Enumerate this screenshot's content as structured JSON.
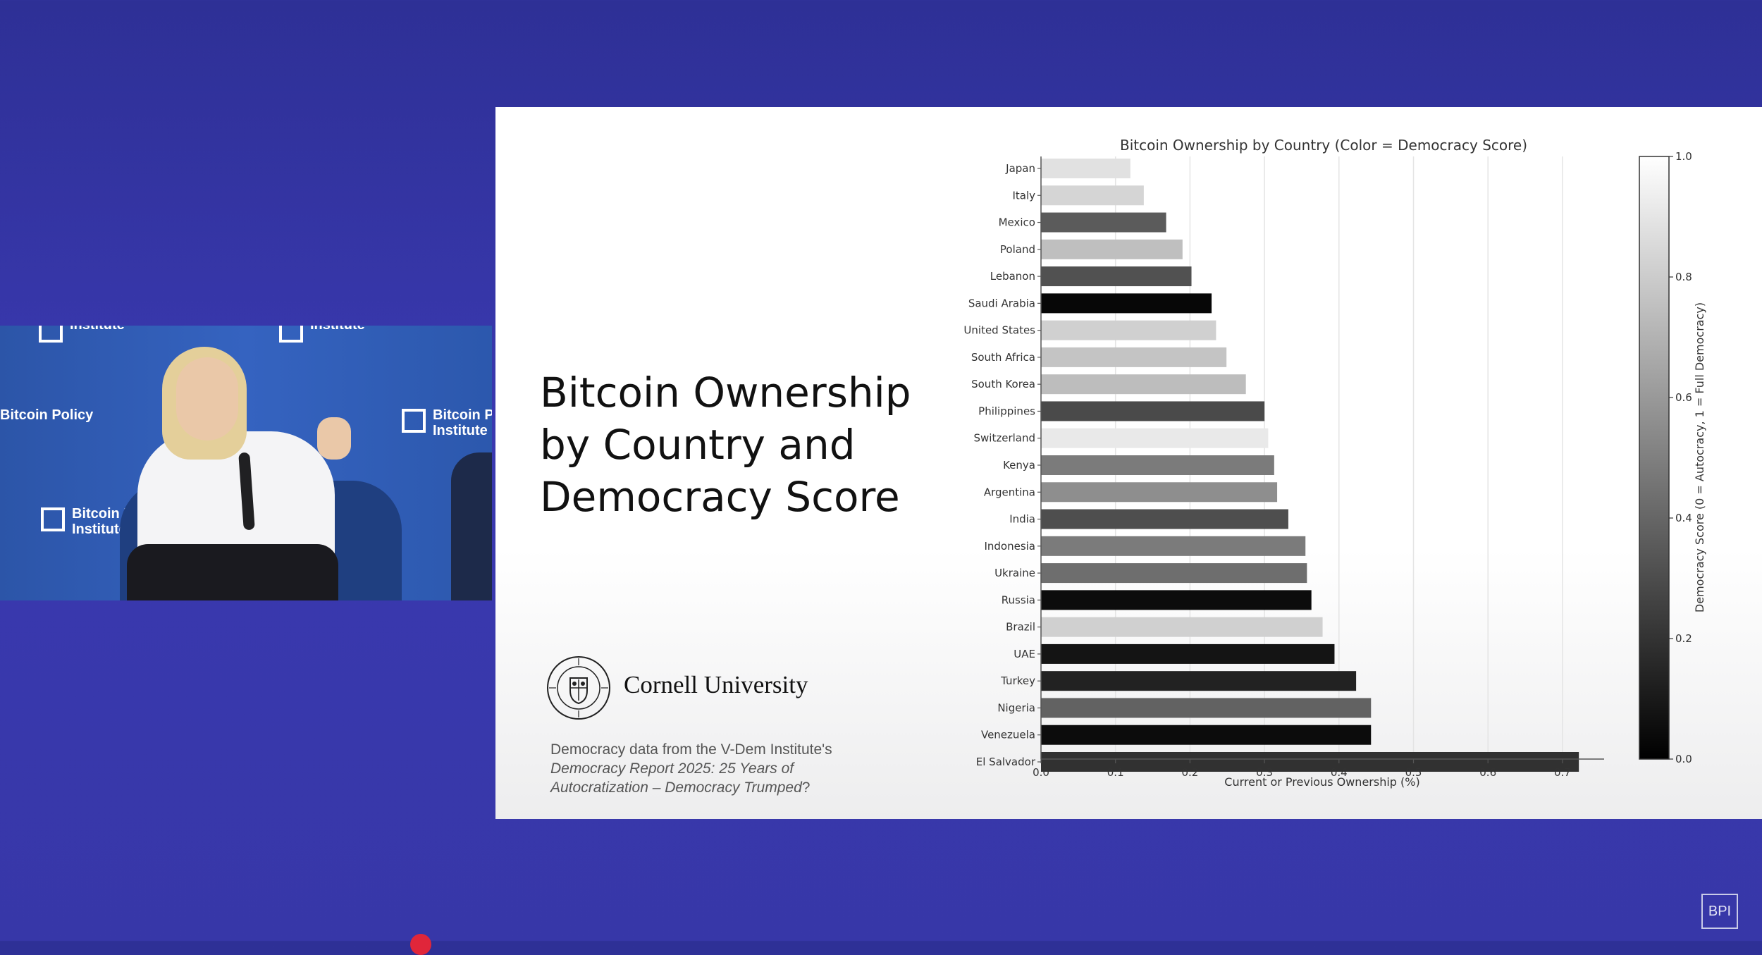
{
  "slide": {
    "title_lines": [
      "Bitcoin Ownership",
      "by Country and",
      "Democracy Score"
    ],
    "university": "Cornell University",
    "source_prefix": "Democracy data from the V-Dem Institute's",
    "source_italic": "Democracy Report 2025: 25 Years of Autocratization – Democracy Trumped",
    "source_suffix": "?"
  },
  "video": {
    "wall_logo_lines": [
      "Bitcoin Policy",
      "Institute"
    ]
  },
  "badge": {
    "label": "BPI"
  },
  "chart_data": {
    "type": "bar",
    "orientation": "horizontal",
    "title": "Bitcoin Ownership by Country (Color = Democracy Score)",
    "xlabel": "Current or Previous Ownership (%)",
    "ylabel": "",
    "xlim": [
      0,
      0.75
    ],
    "xticks": [
      "0.0",
      "0.1",
      "0.2",
      "0.3",
      "0.4",
      "0.5",
      "0.6",
      "0.7"
    ],
    "grid": "vertical",
    "colorbar": {
      "label": "Democracy Score (0 = Autocracy, 1 = Full Democracy)",
      "range": [
        0,
        1
      ],
      "ticks": [
        "0.0",
        "0.2",
        "0.4",
        "0.6",
        "0.8",
        "1.0"
      ],
      "colormap": "greys (0 = black, 1 = white)"
    },
    "categories": [
      "Japan",
      "Italy",
      "Mexico",
      "Poland",
      "Lebanon",
      "Saudi Arabia",
      "United States",
      "South Africa",
      "South Korea",
      "Philippines",
      "Switzerland",
      "Kenya",
      "Argentina",
      "India",
      "Indonesia",
      "Ukraine",
      "Russia",
      "Brazil",
      "UAE",
      "Turkey",
      "Nigeria",
      "Venezuela",
      "El Salvador"
    ],
    "values": [
      0.12,
      0.138,
      0.168,
      0.19,
      0.202,
      0.229,
      0.235,
      0.249,
      0.275,
      0.3,
      0.305,
      0.313,
      0.317,
      0.332,
      0.355,
      0.357,
      0.363,
      0.378,
      0.394,
      0.423,
      0.443,
      0.443,
      0.722
    ],
    "democracy_scores": [
      0.92,
      0.87,
      0.37,
      0.78,
      0.33,
      0.03,
      0.85,
      0.8,
      0.77,
      0.3,
      0.95,
      0.5,
      0.58,
      0.32,
      0.5,
      0.45,
      0.05,
      0.85,
      0.08,
      0.14,
      0.4,
      0.05,
      0.2
    ]
  },
  "colors": {
    "background": "#3434a6",
    "slide": "#ffffff",
    "text": "#111111",
    "note": "#555555"
  }
}
